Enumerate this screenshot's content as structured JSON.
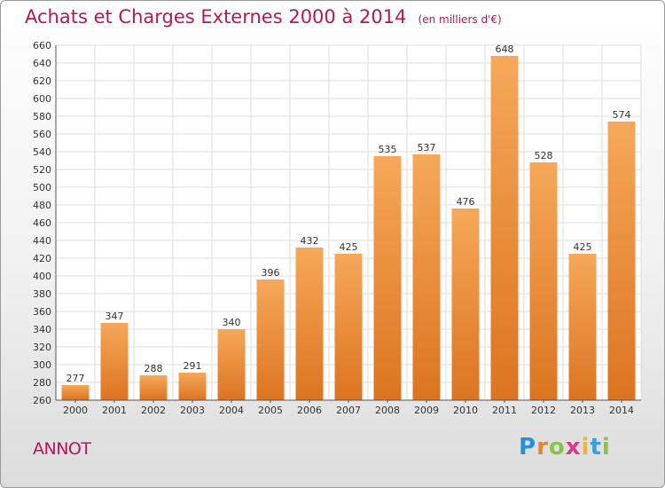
{
  "chart_data": {
    "type": "bar",
    "title": "Achats et Charges Externes 2000 à 2014",
    "unit_label": "(en milliers d'€)",
    "categories": [
      "2000",
      "2001",
      "2002",
      "2003",
      "2004",
      "2005",
      "2006",
      "2007",
      "2008",
      "2009",
      "2010",
      "2011",
      "2012",
      "2013",
      "2014"
    ],
    "values": [
      277,
      347,
      288,
      291,
      340,
      396,
      432,
      425,
      535,
      537,
      476,
      648,
      528,
      425,
      574
    ],
    "ylim": [
      260,
      660
    ],
    "ytick_step": 20,
    "xlabel": "",
    "ylabel": "",
    "bar_color": "#ef8a33",
    "grid": true
  },
  "commune": "ANNOT",
  "logo": {
    "text": "Proxiti",
    "letters": [
      "P",
      "r",
      "o",
      "x",
      "i",
      "t",
      "i"
    ]
  }
}
